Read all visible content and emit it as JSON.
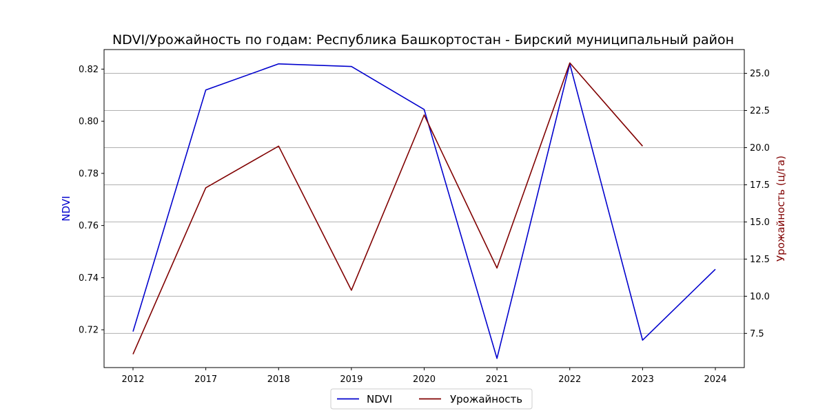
{
  "chart_data": {
    "type": "line",
    "title": "NDVI/Урожайность по годам: Республика Башкортостан - Бирский муниципальный район",
    "categories": [
      "2012",
      "2017",
      "2018",
      "2019",
      "2020",
      "2021",
      "2022",
      "2023",
      "2024"
    ],
    "series": [
      {
        "name": "NDVI",
        "axis": "left",
        "color": "#0000cd",
        "values": [
          0.7193,
          0.812,
          0.822,
          0.821,
          0.8045,
          0.709,
          0.822,
          0.716,
          0.7432
        ]
      },
      {
        "name": "Урожайность",
        "axis": "right",
        "color": "#800000",
        "values": [
          6.1,
          17.3,
          20.1,
          10.4,
          22.2,
          11.9,
          25.7,
          20.1,
          null
        ]
      }
    ],
    "ylabel_left": "NDVI",
    "ylabel_right": "Урожайность (ц/га)",
    "ylim_left": [
      0.7055,
      0.8275
    ],
    "ylim_right": [
      5.2,
      26.6
    ],
    "yticks_left": [
      "0.72",
      "0.74",
      "0.76",
      "0.78",
      "0.80",
      "0.82"
    ],
    "yticks_right": [
      "7.5",
      "10.0",
      "12.5",
      "15.0",
      "17.5",
      "20.0",
      "22.5",
      "25.0"
    ],
    "grid": "horizontal (right axis)",
    "legend": "bottom-center"
  }
}
